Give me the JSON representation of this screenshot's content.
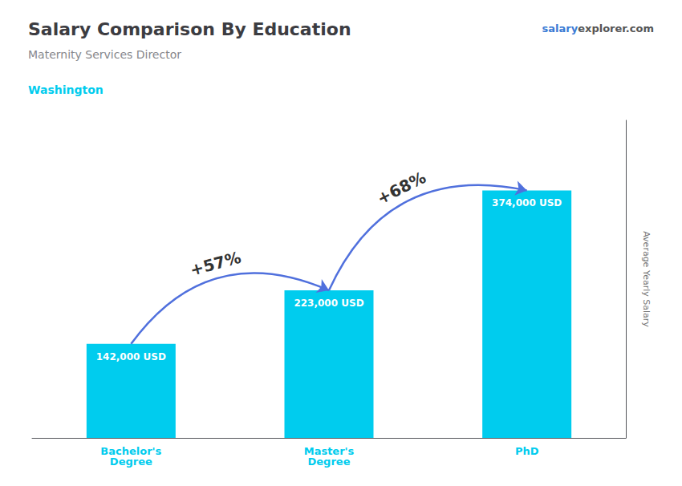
{
  "chart_data": {
    "type": "bar",
    "title": "Salary Comparison By Education",
    "subtitle": "Maternity Services Director",
    "ylabel": "Average Yearly Salary",
    "categories": [
      "Bachelor's\nDegree",
      "Master's\nDegree",
      "PhD"
    ],
    "values": [
      142000,
      223000,
      374000
    ],
    "value_labels": [
      "142,000 USD",
      "223,000 USD",
      "374,000 USD"
    ],
    "data_labels": true,
    "color": "#00ccee",
    "ylim": [
      0,
      480000
    ],
    "grid": false,
    "tick_labels": "x",
    "annotations": [
      {
        "text": "Washington"
      },
      {
        "text": "salary"
      },
      {
        "text": "explorer.com"
      },
      {
        "text": "+57%",
        "from": "Bachelor's\nDegree",
        "to": "Master's\nDegree"
      },
      {
        "text": "+68%",
        "from": "Master's\nDegree",
        "to": "PhD"
      }
    ]
  }
}
